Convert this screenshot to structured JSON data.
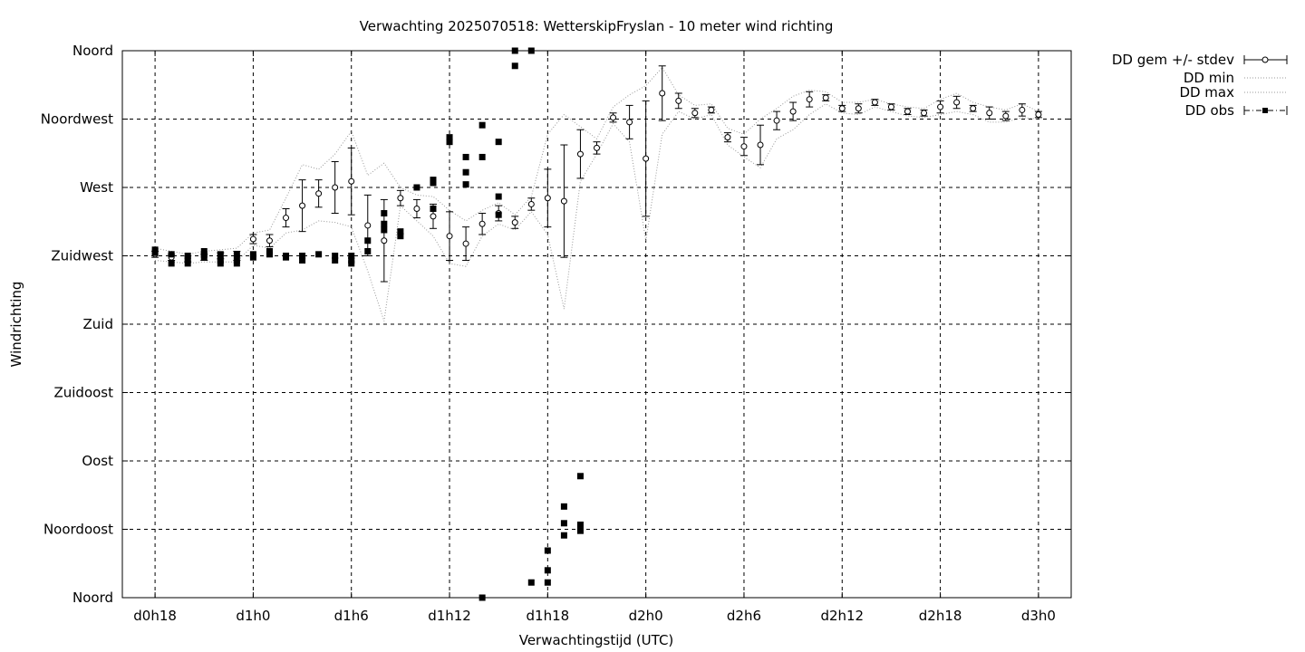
{
  "chart_data": {
    "type": "scatter",
    "title": "Verwachting 2025070518: WetterskipFryslan - 10 meter wind richting",
    "xlabel": "Verwachtingstijd (UTC)",
    "ylabel": "Windrichting",
    "xlim": [
      -2,
      56
    ],
    "ylim": [
      0,
      360
    ],
    "x_ticks": [
      {
        "v": 0,
        "label": "d0h18"
      },
      {
        "v": 6,
        "label": "d1h0"
      },
      {
        "v": 12,
        "label": "d1h6"
      },
      {
        "v": 18,
        "label": "d1h12"
      },
      {
        "v": 24,
        "label": "d1h18"
      },
      {
        "v": 30,
        "label": "d2h0"
      },
      {
        "v": 36,
        "label": "d2h6"
      },
      {
        "v": 42,
        "label": "d2h12"
      },
      {
        "v": 48,
        "label": "d2h18"
      },
      {
        "v": 54,
        "label": "d3h0"
      }
    ],
    "y_ticks": [
      {
        "v": 0,
        "label": "Noord"
      },
      {
        "v": 45,
        "label": "Noordoost"
      },
      {
        "v": 90,
        "label": "Oost"
      },
      {
        "v": 135,
        "label": "Zuidoost"
      },
      {
        "v": 180,
        "label": "Zuid"
      },
      {
        "v": 225,
        "label": "Zuidwest"
      },
      {
        "v": 270,
        "label": "West"
      },
      {
        "v": 315,
        "label": "Noordwest"
      },
      {
        "v": 360,
        "label": "Noord"
      }
    ],
    "grid": true,
    "legend_position": "outside-right",
    "series": [
      {
        "name": "DD gem +/- stdev",
        "style": "points-errorbars-open-circle",
        "points": [
          [
            0,
            226,
            2
          ],
          [
            1,
            224,
            2
          ],
          [
            2,
            223,
            2
          ],
          [
            3,
            224,
            2
          ],
          [
            4,
            225,
            2
          ],
          [
            5,
            225,
            3
          ],
          [
            6,
            236,
            3
          ],
          [
            7,
            235,
            4
          ],
          [
            8,
            250,
            6
          ],
          [
            9,
            258,
            17
          ],
          [
            10,
            266,
            9
          ],
          [
            11,
            270,
            17
          ],
          [
            12,
            274,
            22
          ],
          [
            13,
            245,
            20
          ],
          [
            14,
            235,
            27
          ],
          [
            15,
            263,
            5
          ],
          [
            16,
            256,
            6
          ],
          [
            17,
            251,
            8
          ],
          [
            18,
            238,
            16
          ],
          [
            19,
            233,
            11
          ],
          [
            20,
            246,
            7
          ],
          [
            21,
            253,
            5
          ],
          [
            22,
            247,
            4
          ],
          [
            23,
            259,
            4
          ],
          [
            24,
            263,
            19
          ],
          [
            25,
            261,
            37
          ],
          [
            26,
            292,
            16
          ],
          [
            27,
            296,
            4
          ],
          [
            28,
            316,
            3
          ],
          [
            29,
            313,
            11
          ],
          [
            30,
            289,
            38
          ],
          [
            31,
            332,
            18
          ],
          [
            32,
            327,
            5
          ],
          [
            33,
            319,
            3
          ],
          [
            34,
            321,
            2
          ],
          [
            35,
            303,
            3
          ],
          [
            36,
            297,
            6
          ],
          [
            37,
            298,
            13
          ],
          [
            38,
            314,
            6
          ],
          [
            39,
            320,
            6
          ],
          [
            40,
            328,
            5
          ],
          [
            41,
            329,
            2
          ],
          [
            42,
            322,
            2
          ],
          [
            43,
            322,
            3
          ],
          [
            44,
            326,
            2
          ],
          [
            45,
            323,
            2
          ],
          [
            46,
            320,
            2
          ],
          [
            47,
            319,
            2
          ],
          [
            48,
            323,
            4
          ],
          [
            49,
            326,
            4
          ],
          [
            50,
            322,
            2
          ],
          [
            51,
            319,
            4
          ],
          [
            52,
            317,
            3
          ],
          [
            53,
            321,
            4
          ],
          [
            54,
            318,
            2
          ]
        ]
      },
      {
        "name": "DD min",
        "style": "dotted-line",
        "points": [
          [
            0,
            222
          ],
          [
            1,
            221
          ],
          [
            2,
            220
          ],
          [
            3,
            221
          ],
          [
            4,
            221
          ],
          [
            5,
            221
          ],
          [
            6,
            232
          ],
          [
            7,
            230
          ],
          [
            8,
            240
          ],
          [
            9,
            242
          ],
          [
            10,
            248
          ],
          [
            11,
            247
          ],
          [
            12,
            244
          ],
          [
            13,
            215
          ],
          [
            14,
            182
          ],
          [
            15,
            258
          ],
          [
            16,
            248
          ],
          [
            17,
            238
          ],
          [
            18,
            220
          ],
          [
            19,
            218
          ],
          [
            20,
            238
          ],
          [
            21,
            246
          ],
          [
            22,
            242
          ],
          [
            23,
            254
          ],
          [
            24,
            239
          ],
          [
            25,
            190
          ],
          [
            26,
            274
          ],
          [
            27,
            292
          ],
          [
            28,
            312
          ],
          [
            29,
            300
          ],
          [
            30,
            235
          ],
          [
            31,
            305
          ],
          [
            32,
            320
          ],
          [
            33,
            315
          ],
          [
            34,
            318
          ],
          [
            35,
            298
          ],
          [
            36,
            290
          ],
          [
            37,
            283
          ],
          [
            38,
            302
          ],
          [
            39,
            308
          ],
          [
            40,
            318
          ],
          [
            41,
            325
          ],
          [
            42,
            319
          ],
          [
            43,
            318
          ],
          [
            44,
            323
          ],
          [
            45,
            320
          ],
          [
            46,
            317
          ],
          [
            47,
            316
          ],
          [
            48,
            318
          ],
          [
            49,
            320
          ],
          [
            50,
            318
          ],
          [
            51,
            313
          ],
          [
            52,
            313
          ],
          [
            53,
            316
          ],
          [
            54,
            315
          ]
        ]
      },
      {
        "name": "DD max",
        "style": "dotted-line",
        "points": [
          [
            0,
            230
          ],
          [
            1,
            228
          ],
          [
            2,
            226
          ],
          [
            3,
            228
          ],
          [
            4,
            229
          ],
          [
            5,
            230
          ],
          [
            6,
            240
          ],
          [
            7,
            242
          ],
          [
            8,
            263
          ],
          [
            9,
            285
          ],
          [
            10,
            282
          ],
          [
            11,
            292
          ],
          [
            12,
            307
          ],
          [
            13,
            278
          ],
          [
            14,
            286
          ],
          [
            15,
            270
          ],
          [
            16,
            265
          ],
          [
            17,
            264
          ],
          [
            18,
            255
          ],
          [
            19,
            248
          ],
          [
            20,
            255
          ],
          [
            21,
            260
          ],
          [
            22,
            252
          ],
          [
            23,
            264
          ],
          [
            24,
            305
          ],
          [
            25,
            318
          ],
          [
            26,
            310
          ],
          [
            27,
            302
          ],
          [
            28,
            323
          ],
          [
            29,
            331
          ],
          [
            30,
            337
          ],
          [
            31,
            349
          ],
          [
            32,
            331
          ],
          [
            33,
            324
          ],
          [
            34,
            325
          ],
          [
            35,
            309
          ],
          [
            36,
            305
          ],
          [
            37,
            315
          ],
          [
            38,
            322
          ],
          [
            39,
            330
          ],
          [
            40,
            334
          ],
          [
            41,
            333
          ],
          [
            42,
            326
          ],
          [
            43,
            326
          ],
          [
            44,
            328
          ],
          [
            45,
            325
          ],
          [
            46,
            323
          ],
          [
            47,
            322
          ],
          [
            48,
            328
          ],
          [
            49,
            332
          ],
          [
            50,
            326
          ],
          [
            51,
            323
          ],
          [
            52,
            321
          ],
          [
            53,
            325
          ],
          [
            54,
            320
          ]
        ]
      },
      {
        "name": "DD obs",
        "style": "filled-squares",
        "points": [
          [
            0,
            229
          ],
          [
            0,
            227
          ],
          [
            1,
            226
          ],
          [
            1,
            220
          ],
          [
            2,
            225
          ],
          [
            2,
            223
          ],
          [
            2,
            220
          ],
          [
            3,
            228
          ],
          [
            3,
            226
          ],
          [
            3,
            224
          ],
          [
            4,
            226
          ],
          [
            4,
            222
          ],
          [
            4,
            220
          ],
          [
            5,
            226
          ],
          [
            5,
            222
          ],
          [
            5,
            220
          ],
          [
            6,
            226
          ],
          [
            6,
            224
          ],
          [
            7,
            228
          ],
          [
            7,
            226
          ],
          [
            8,
            225
          ],
          [
            8,
            224
          ],
          [
            9,
            225
          ],
          [
            9,
            222
          ],
          [
            10,
            226
          ],
          [
            11,
            225
          ],
          [
            11,
            222
          ],
          [
            12,
            225
          ],
          [
            12,
            222
          ],
          [
            12,
            220
          ],
          [
            13,
            228
          ],
          [
            13,
            235
          ],
          [
            14,
            253
          ],
          [
            14,
            246
          ],
          [
            14,
            242
          ],
          [
            15,
            241
          ],
          [
            15,
            238
          ],
          [
            16,
            270
          ],
          [
            17,
            275
          ],
          [
            17,
            273
          ],
          [
            17,
            256
          ],
          [
            18,
            303
          ],
          [
            18,
            300
          ],
          [
            19,
            290
          ],
          [
            19,
            280
          ],
          [
            19,
            272
          ],
          [
            20,
            290
          ],
          [
            20,
            311
          ],
          [
            20,
            0
          ],
          [
            21,
            300
          ],
          [
            21,
            264
          ],
          [
            21,
            252
          ],
          [
            22,
            360
          ],
          [
            22,
            350
          ],
          [
            23,
            360
          ],
          [
            23,
            10
          ],
          [
            24,
            18
          ],
          [
            24,
            10
          ],
          [
            24,
            31
          ],
          [
            25,
            49
          ],
          [
            25,
            41
          ],
          [
            25,
            60
          ],
          [
            26,
            80
          ],
          [
            26,
            44
          ],
          [
            26,
            48
          ]
        ]
      }
    ]
  }
}
